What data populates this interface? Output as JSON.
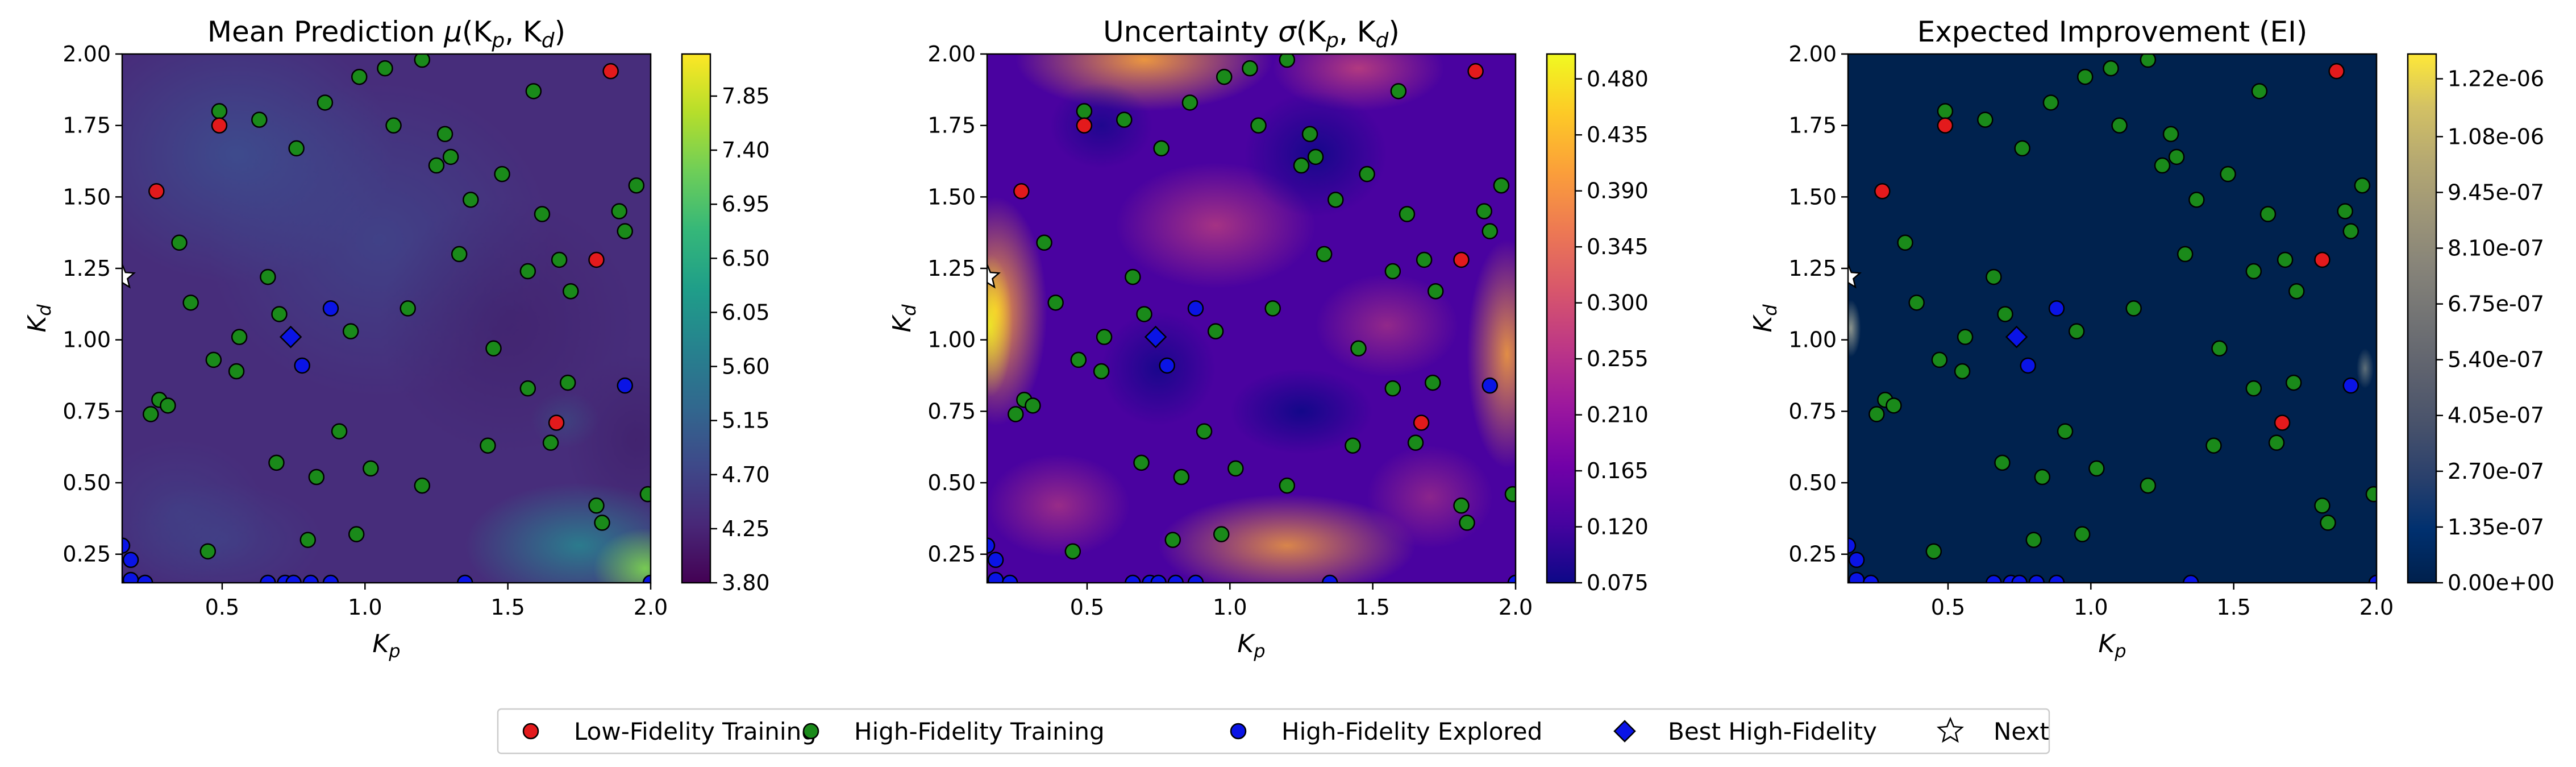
{
  "legend": {
    "placement": "bottom-center",
    "items": [
      {
        "key": "low",
        "label": "Low-Fidelity Training",
        "marker": "circle",
        "color": "#e31a1c"
      },
      {
        "key": "high",
        "label": "High-Fidelity Training",
        "marker": "circle",
        "color": "#1a8a1a"
      },
      {
        "key": "explored",
        "label": "High-Fidelity Explored",
        "marker": "circle",
        "color": "#0a14e6"
      },
      {
        "key": "best",
        "label": "Best High-Fidelity",
        "marker": "diamond",
        "color": "#0a14e6"
      },
      {
        "key": "next",
        "label": "Next",
        "marker": "star",
        "color": "#ffffff"
      }
    ]
  },
  "chart_data": [
    {
      "type": "heatmap",
      "title_parts": {
        "pre": "Mean Prediction ",
        "sym": "μ",
        "post": "(K",
        "s1": "p",
        "mid": ", K",
        "s2": "d",
        "end": ")"
      },
      "xlabel": {
        "base": "K",
        "sub": "p"
      },
      "ylabel": {
        "base": "K",
        "sub": "d"
      },
      "xlim": [
        0.15,
        2.0
      ],
      "ylim": [
        0.15,
        2.0
      ],
      "xticks": [
        "0.5",
        "1.0",
        "1.5",
        "2.0"
      ],
      "yticks": [
        "0.25",
        "0.50",
        "0.75",
        "1.00",
        "1.25",
        "1.50",
        "1.75",
        "2.00"
      ],
      "colormap": "viridis",
      "colorbar": {
        "min": 3.8,
        "max": 8.2,
        "ticks": [
          "3.80",
          "4.25",
          "4.70",
          "5.15",
          "5.60",
          "6.05",
          "6.50",
          "6.95",
          "7.40",
          "7.85"
        ]
      }
    },
    {
      "type": "heatmap",
      "title_parts": {
        "pre": "Uncertainty ",
        "sym": "σ",
        "post": "(K",
        "s1": "p",
        "mid": ", K",
        "s2": "d",
        "end": ")"
      },
      "xlabel": {
        "base": "K",
        "sub": "p"
      },
      "ylabel": {
        "base": "K",
        "sub": "d"
      },
      "xlim": [
        0.15,
        2.0
      ],
      "ylim": [
        0.15,
        2.0
      ],
      "xticks": [
        "0.5",
        "1.0",
        "1.5",
        "2.0"
      ],
      "yticks": [
        "0.25",
        "0.50",
        "0.75",
        "1.00",
        "1.25",
        "1.50",
        "1.75",
        "2.00"
      ],
      "colormap": "plasma",
      "colorbar": {
        "min": 0.075,
        "max": 0.5,
        "ticks": [
          "0.075",
          "0.120",
          "0.165",
          "0.210",
          "0.255",
          "0.300",
          "0.345",
          "0.390",
          "0.435",
          "0.480"
        ]
      }
    },
    {
      "type": "heatmap",
      "title_parts": {
        "pre": "Expected Improvement (EI)",
        "sym": "",
        "post": "",
        "s1": "",
        "mid": "",
        "s2": "",
        "end": ""
      },
      "xlabel": {
        "base": "K",
        "sub": "p"
      },
      "ylabel": {
        "base": "K",
        "sub": "d"
      },
      "xlim": [
        0.15,
        2.0
      ],
      "ylim": [
        0.15,
        2.0
      ],
      "xticks": [
        "0.5",
        "1.0",
        "1.5",
        "2.0"
      ],
      "yticks": [
        "0.25",
        "0.50",
        "0.75",
        "1.00",
        "1.25",
        "1.50",
        "1.75",
        "2.00"
      ],
      "colormap": "cividis",
      "colorbar": {
        "min": 0.0,
        "max": 1.28e-06,
        "ticks": [
          "0.00e+00",
          "1.35e-07",
          "2.70e-07",
          "4.05e-07",
          "5.40e-07",
          "6.75e-07",
          "8.10e-07",
          "9.45e-07",
          "1.08e-06",
          "1.22e-06"
        ]
      }
    }
  ],
  "points": {
    "low": [
      [
        0.27,
        1.52
      ],
      [
        0.49,
        1.75
      ],
      [
        1.86,
        1.94
      ],
      [
        1.81,
        1.28
      ],
      [
        1.67,
        0.71
      ]
    ],
    "high": [
      [
        0.35,
        1.34
      ],
      [
        0.39,
        1.13
      ],
      [
        0.49,
        1.8
      ],
      [
        0.63,
        1.77
      ],
      [
        0.76,
        1.67
      ],
      [
        0.86,
        1.83
      ],
      [
        0.98,
        1.92
      ],
      [
        1.07,
        1.95
      ],
      [
        1.1,
        1.75
      ],
      [
        1.2,
        1.98
      ],
      [
        1.28,
        1.72
      ],
      [
        1.3,
        1.64
      ],
      [
        1.25,
        1.61
      ],
      [
        1.37,
        1.49
      ],
      [
        1.48,
        1.58
      ],
      [
        1.59,
        1.87
      ],
      [
        1.62,
        1.44
      ],
      [
        1.68,
        1.28
      ],
      [
        1.72,
        1.17
      ],
      [
        1.89,
        1.45
      ],
      [
        1.91,
        1.38
      ],
      [
        1.95,
        1.54
      ],
      [
        1.57,
        1.24
      ],
      [
        1.33,
        1.3
      ],
      [
        1.15,
        1.11
      ],
      [
        0.95,
        1.03
      ],
      [
        0.7,
        1.09
      ],
      [
        0.66,
        1.22
      ],
      [
        0.56,
        1.01
      ],
      [
        0.47,
        0.93
      ],
      [
        0.55,
        0.89
      ],
      [
        0.28,
        0.79
      ],
      [
        0.31,
        0.77
      ],
      [
        0.25,
        0.74
      ],
      [
        0.83,
        0.52
      ],
      [
        0.91,
        0.68
      ],
      [
        0.69,
        0.57
      ],
      [
        1.02,
        0.55
      ],
      [
        1.2,
        0.49
      ],
      [
        1.45,
        0.97
      ],
      [
        1.57,
        0.83
      ],
      [
        1.71,
        0.85
      ],
      [
        1.65,
        0.64
      ],
      [
        1.43,
        0.63
      ],
      [
        1.81,
        0.42
      ],
      [
        1.83,
        0.36
      ],
      [
        1.99,
        0.46
      ],
      [
        0.97,
        0.32
      ],
      [
        0.8,
        0.3
      ],
      [
        0.45,
        0.26
      ]
    ],
    "explored": [
      [
        0.88,
        1.11
      ],
      [
        0.78,
        0.91
      ],
      [
        1.91,
        0.84
      ],
      [
        0.15,
        0.28
      ],
      [
        0.18,
        0.23
      ],
      [
        0.18,
        0.16
      ],
      [
        0.23,
        0.15
      ],
      [
        0.66,
        0.15
      ],
      [
        0.72,
        0.15
      ],
      [
        0.75,
        0.15
      ],
      [
        0.81,
        0.15
      ],
      [
        0.88,
        0.15
      ],
      [
        1.35,
        0.15
      ],
      [
        2.0,
        0.15
      ]
    ],
    "best": [
      [
        0.74,
        1.01
      ]
    ],
    "next": [
      [
        0.15,
        1.22
      ]
    ]
  }
}
